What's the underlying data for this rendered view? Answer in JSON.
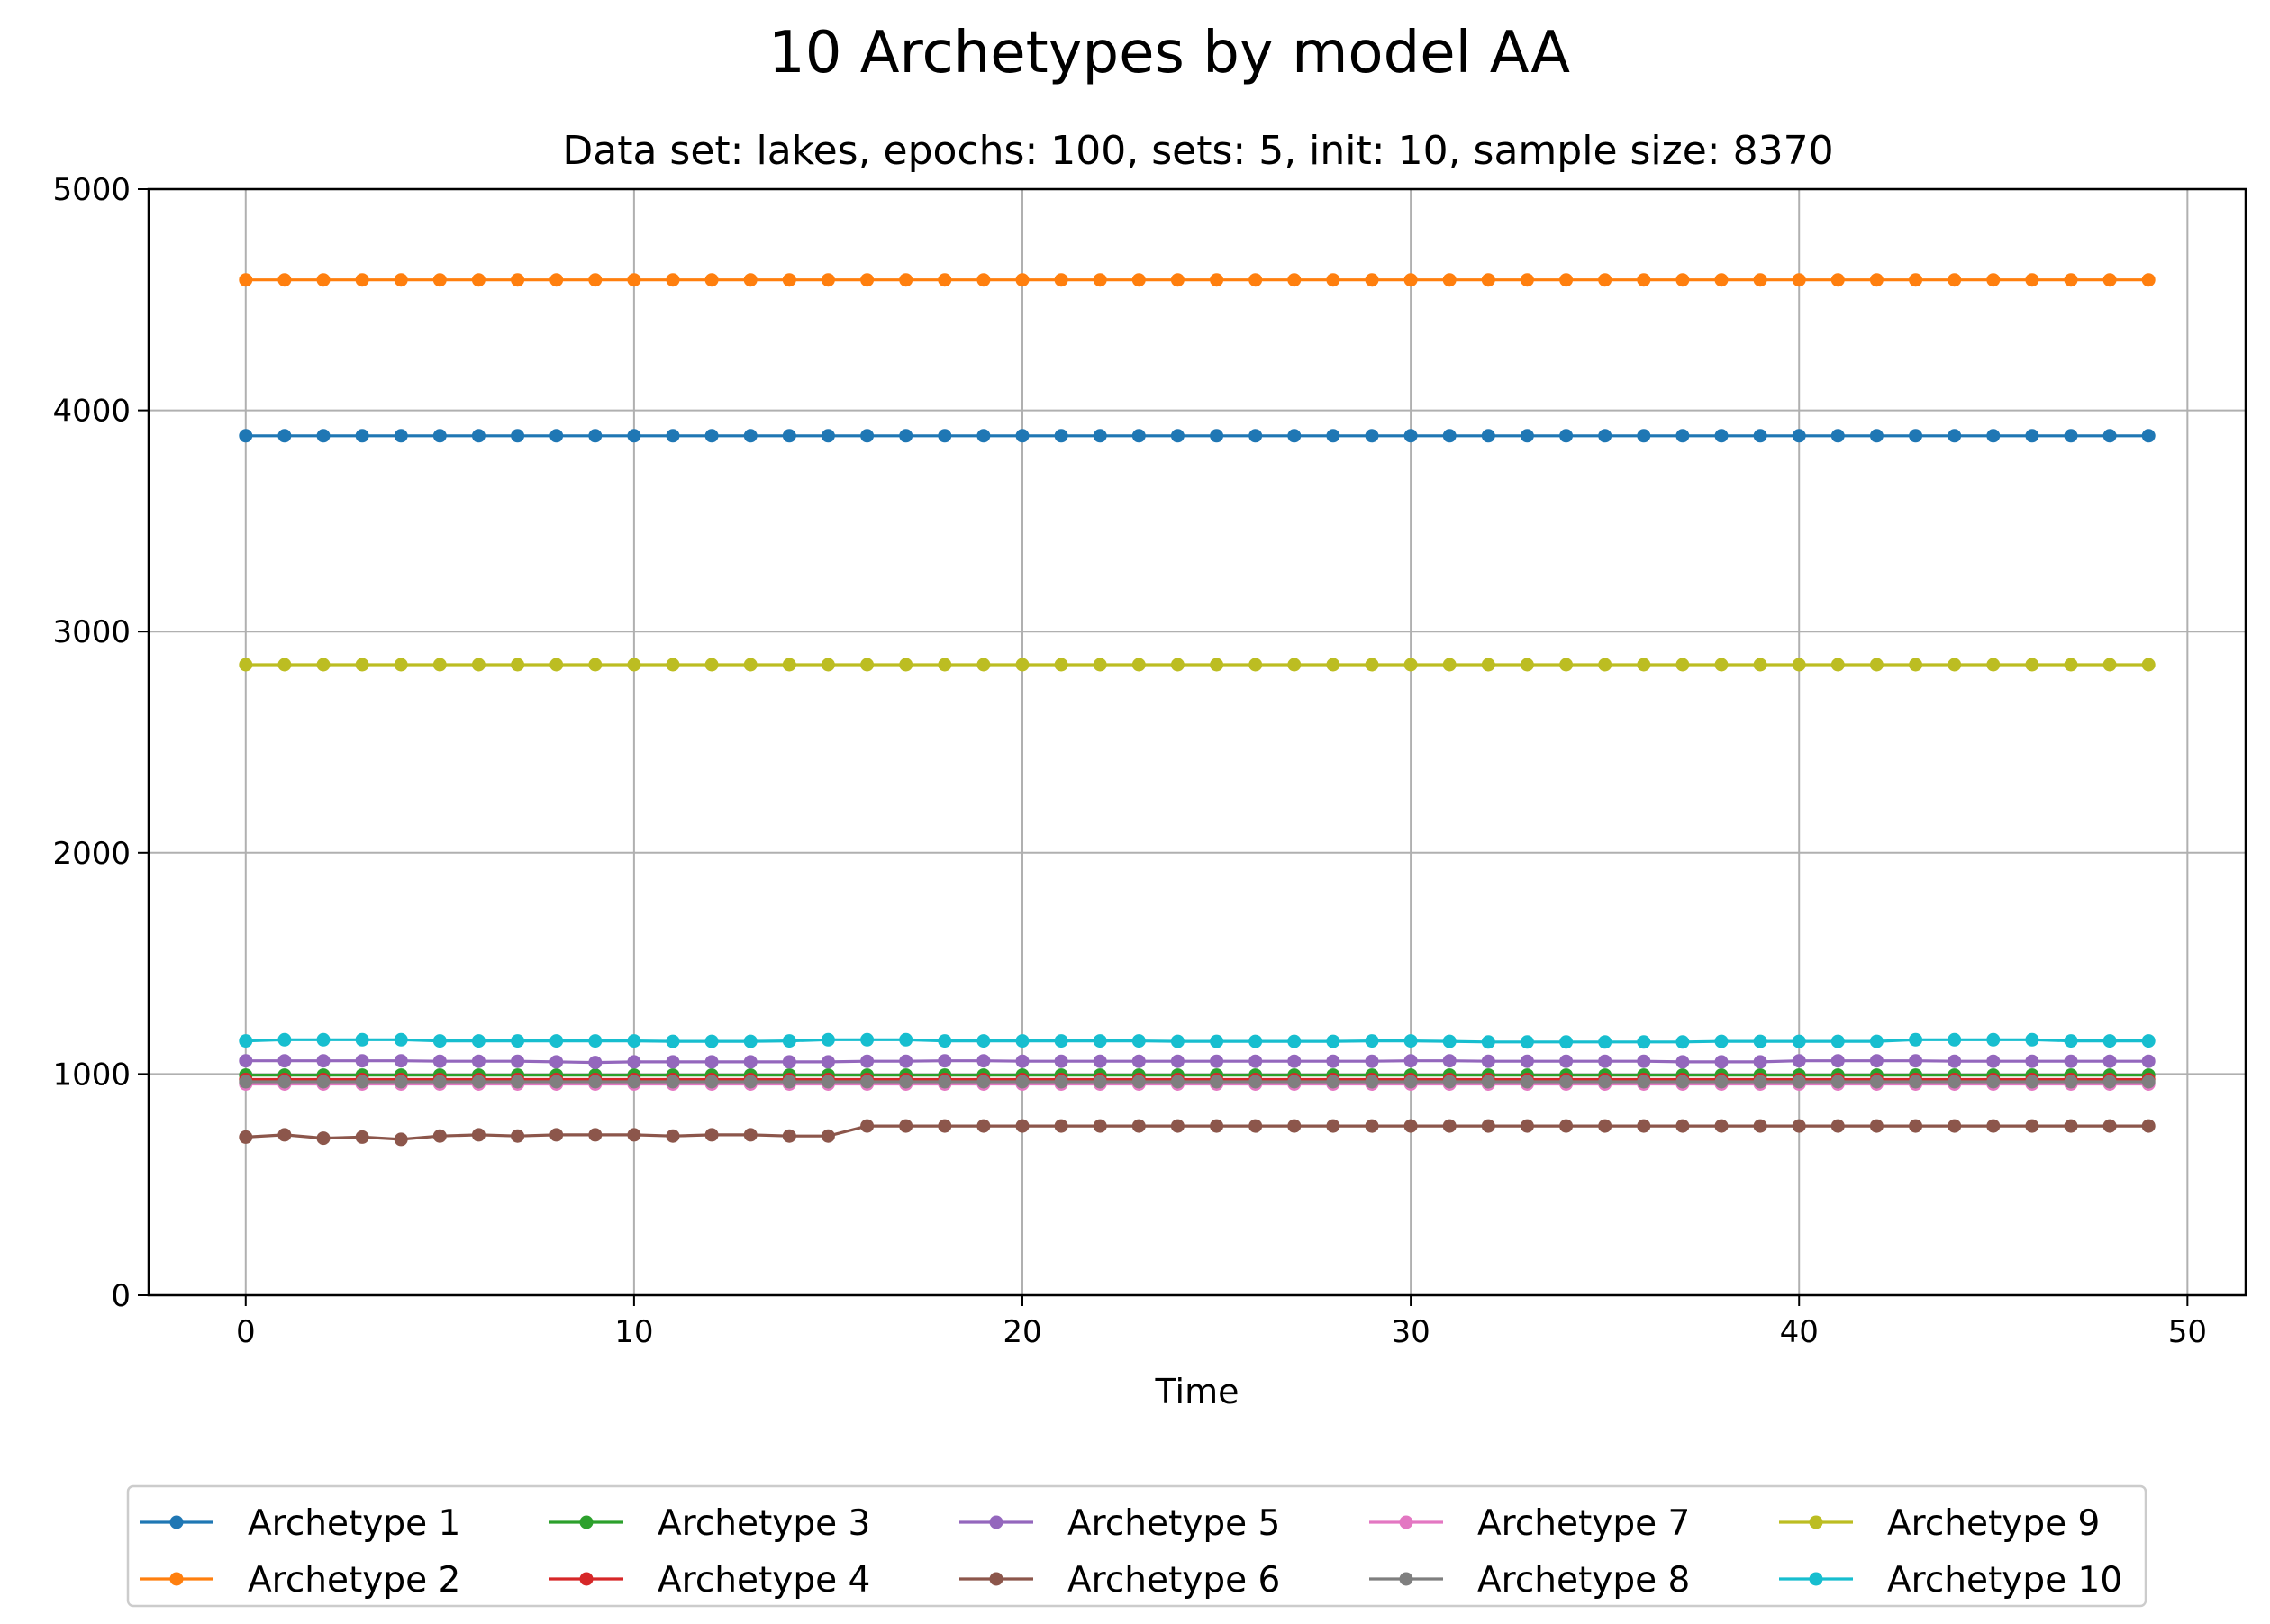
{
  "chart_data": {
    "type": "line",
    "title": "10 Archetypes by model AA",
    "subtitle": "Data set: lakes, epochs: 100, sets: 5, init: 10, sample size: 8370",
    "xlabel": "Time",
    "ylabel": "",
    "xlim": [
      -2.5,
      51.5
    ],
    "ylim": [
      0,
      5000
    ],
    "xticks": [
      "0",
      "10",
      "20",
      "30",
      "40",
      "50"
    ],
    "yticks": [
      "0",
      "1000",
      "2000",
      "3000",
      "4000",
      "5000"
    ],
    "grid": true,
    "legend_position": "bottom",
    "series": [
      {
        "name": "Archetype 1",
        "color": "#1f77b4",
        "values": [
          3885,
          3885,
          3885,
          3885,
          3885,
          3885,
          3885,
          3885,
          3885,
          3885,
          3885,
          3885,
          3885,
          3885,
          3885,
          3885,
          3885,
          3885,
          3885,
          3885,
          3885,
          3885,
          3885,
          3885,
          3885,
          3885,
          3885,
          3885,
          3885,
          3885,
          3885,
          3885,
          3885,
          3885,
          3885,
          3885,
          3885,
          3885,
          3885,
          3885,
          3885,
          3885,
          3885,
          3885,
          3885,
          3885,
          3885,
          3885,
          3885,
          3885
        ]
      },
      {
        "name": "Archetype 2",
        "color": "#ff7f0e",
        "values": [
          4590,
          4590,
          4590,
          4590,
          4590,
          4590,
          4590,
          4590,
          4590,
          4590,
          4590,
          4590,
          4590,
          4590,
          4590,
          4590,
          4590,
          4590,
          4590,
          4590,
          4590,
          4590,
          4590,
          4590,
          4590,
          4590,
          4590,
          4590,
          4590,
          4590,
          4590,
          4590,
          4590,
          4590,
          4590,
          4590,
          4590,
          4590,
          4590,
          4590,
          4590,
          4590,
          4590,
          4590,
          4590,
          4590,
          4590,
          4590,
          4590,
          4590
        ]
      },
      {
        "name": "Archetype 3",
        "color": "#2ca02c",
        "values": [
          995,
          995,
          995,
          995,
          995,
          995,
          995,
          995,
          995,
          995,
          995,
          995,
          995,
          995,
          995,
          995,
          995,
          995,
          995,
          995,
          995,
          995,
          995,
          995,
          995,
          995,
          995,
          995,
          995,
          995,
          995,
          995,
          995,
          995,
          995,
          995,
          995,
          995,
          995,
          995,
          995,
          995,
          995,
          995,
          995,
          995,
          995,
          995,
          995,
          995
        ]
      },
      {
        "name": "Archetype 4",
        "color": "#d62728",
        "values": [
          975,
          975,
          975,
          975,
          975,
          975,
          975,
          975,
          975,
          975,
          975,
          975,
          975,
          975,
          975,
          975,
          975,
          975,
          975,
          975,
          975,
          975,
          975,
          975,
          975,
          975,
          975,
          975,
          975,
          975,
          975,
          975,
          975,
          975,
          975,
          975,
          975,
          975,
          975,
          975,
          975,
          975,
          975,
          975,
          975,
          975,
          975,
          975,
          975,
          975
        ]
      },
      {
        "name": "Archetype 5",
        "color": "#9467bd",
        "values": [
          1060,
          1060,
          1060,
          1060,
          1060,
          1058,
          1058,
          1058,
          1055,
          1052,
          1055,
          1055,
          1055,
          1055,
          1055,
          1055,
          1058,
          1058,
          1060,
          1060,
          1058,
          1058,
          1058,
          1058,
          1058,
          1058,
          1058,
          1058,
          1058,
          1058,
          1060,
          1060,
          1058,
          1058,
          1058,
          1058,
          1058,
          1055,
          1055,
          1055,
          1060,
          1060,
          1060,
          1060,
          1058,
          1058,
          1058,
          1058,
          1058,
          1058
        ]
      },
      {
        "name": "Archetype 6",
        "color": "#8c564b",
        "values": [
          715,
          725,
          710,
          715,
          705,
          720,
          725,
          720,
          725,
          725,
          725,
          720,
          725,
          725,
          720,
          720,
          765,
          765,
          765,
          765,
          765,
          765,
          765,
          765,
          765,
          765,
          765,
          765,
          765,
          765,
          765,
          765,
          765,
          765,
          765,
          765,
          765,
          765,
          765,
          765,
          765,
          765,
          765,
          765,
          765,
          765,
          765,
          765,
          765,
          765
        ]
      },
      {
        "name": "Archetype 7",
        "color": "#e377c2",
        "values": [
          955,
          955,
          955,
          955,
          955,
          955,
          955,
          955,
          955,
          955,
          955,
          955,
          955,
          955,
          955,
          955,
          955,
          955,
          955,
          955,
          955,
          955,
          955,
          955,
          955,
          955,
          955,
          955,
          955,
          955,
          955,
          955,
          955,
          955,
          955,
          955,
          955,
          955,
          955,
          955,
          955,
          955,
          955,
          955,
          955,
          955,
          955,
          955,
          955,
          955
        ]
      },
      {
        "name": "Archetype 8",
        "color": "#7f7f7f",
        "values": [
          965,
          965,
          965,
          965,
          965,
          965,
          965,
          965,
          965,
          965,
          965,
          965,
          965,
          965,
          965,
          965,
          965,
          965,
          965,
          965,
          965,
          965,
          965,
          965,
          965,
          965,
          965,
          965,
          965,
          965,
          965,
          965,
          965,
          965,
          965,
          965,
          965,
          965,
          965,
          965,
          965,
          965,
          965,
          965,
          965,
          965,
          965,
          965,
          965,
          965
        ]
      },
      {
        "name": "Archetype 9",
        "color": "#bcbd22",
        "values": [
          2850,
          2850,
          2850,
          2850,
          2850,
          2850,
          2850,
          2850,
          2850,
          2850,
          2850,
          2850,
          2850,
          2850,
          2850,
          2850,
          2850,
          2850,
          2850,
          2850,
          2850,
          2850,
          2850,
          2850,
          2850,
          2850,
          2850,
          2850,
          2850,
          2850,
          2850,
          2850,
          2850,
          2850,
          2850,
          2850,
          2850,
          2850,
          2850,
          2850,
          2850,
          2850,
          2850,
          2850,
          2850,
          2850,
          2850,
          2850,
          2850,
          2850
        ]
      },
      {
        "name": "Archetype 10",
        "color": "#17becf",
        "values": [
          1150,
          1155,
          1155,
          1155,
          1155,
          1150,
          1150,
          1150,
          1150,
          1150,
          1150,
          1148,
          1148,
          1148,
          1150,
          1155,
          1155,
          1155,
          1150,
          1150,
          1150,
          1150,
          1150,
          1150,
          1148,
          1148,
          1148,
          1148,
          1148,
          1150,
          1150,
          1148,
          1145,
          1145,
          1145,
          1145,
          1145,
          1145,
          1148,
          1148,
          1148,
          1148,
          1148,
          1155,
          1155,
          1155,
          1155,
          1150,
          1150,
          1150
        ]
      }
    ]
  }
}
